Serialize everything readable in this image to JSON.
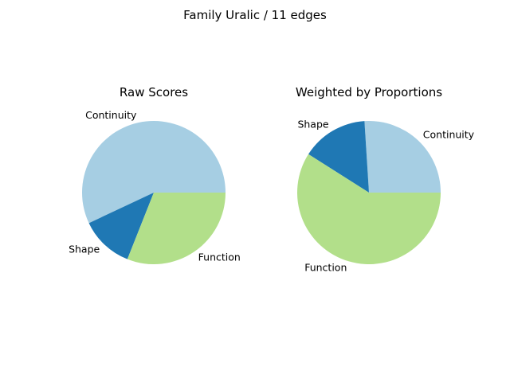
{
  "figure": {
    "title": "Family Uralic / 11 edges"
  },
  "chart_data": [
    {
      "type": "pie",
      "title": "Raw Scores",
      "labels": [
        "Continuity",
        "Shape",
        "Function"
      ],
      "values": [
        57,
        12,
        31
      ],
      "colors": [
        "#a6cee3",
        "#1f78b4",
        "#b2df8a"
      ],
      "start_angle_deg": 0,
      "direction": "counterclockwise"
    },
    {
      "type": "pie",
      "title": "Weighted by Proportions",
      "labels": [
        "Continuity",
        "Shape",
        "Function"
      ],
      "values": [
        26,
        15,
        59
      ],
      "colors": [
        "#a6cee3",
        "#1f78b4",
        "#b2df8a"
      ],
      "start_angle_deg": 0,
      "direction": "counterclockwise"
    }
  ]
}
